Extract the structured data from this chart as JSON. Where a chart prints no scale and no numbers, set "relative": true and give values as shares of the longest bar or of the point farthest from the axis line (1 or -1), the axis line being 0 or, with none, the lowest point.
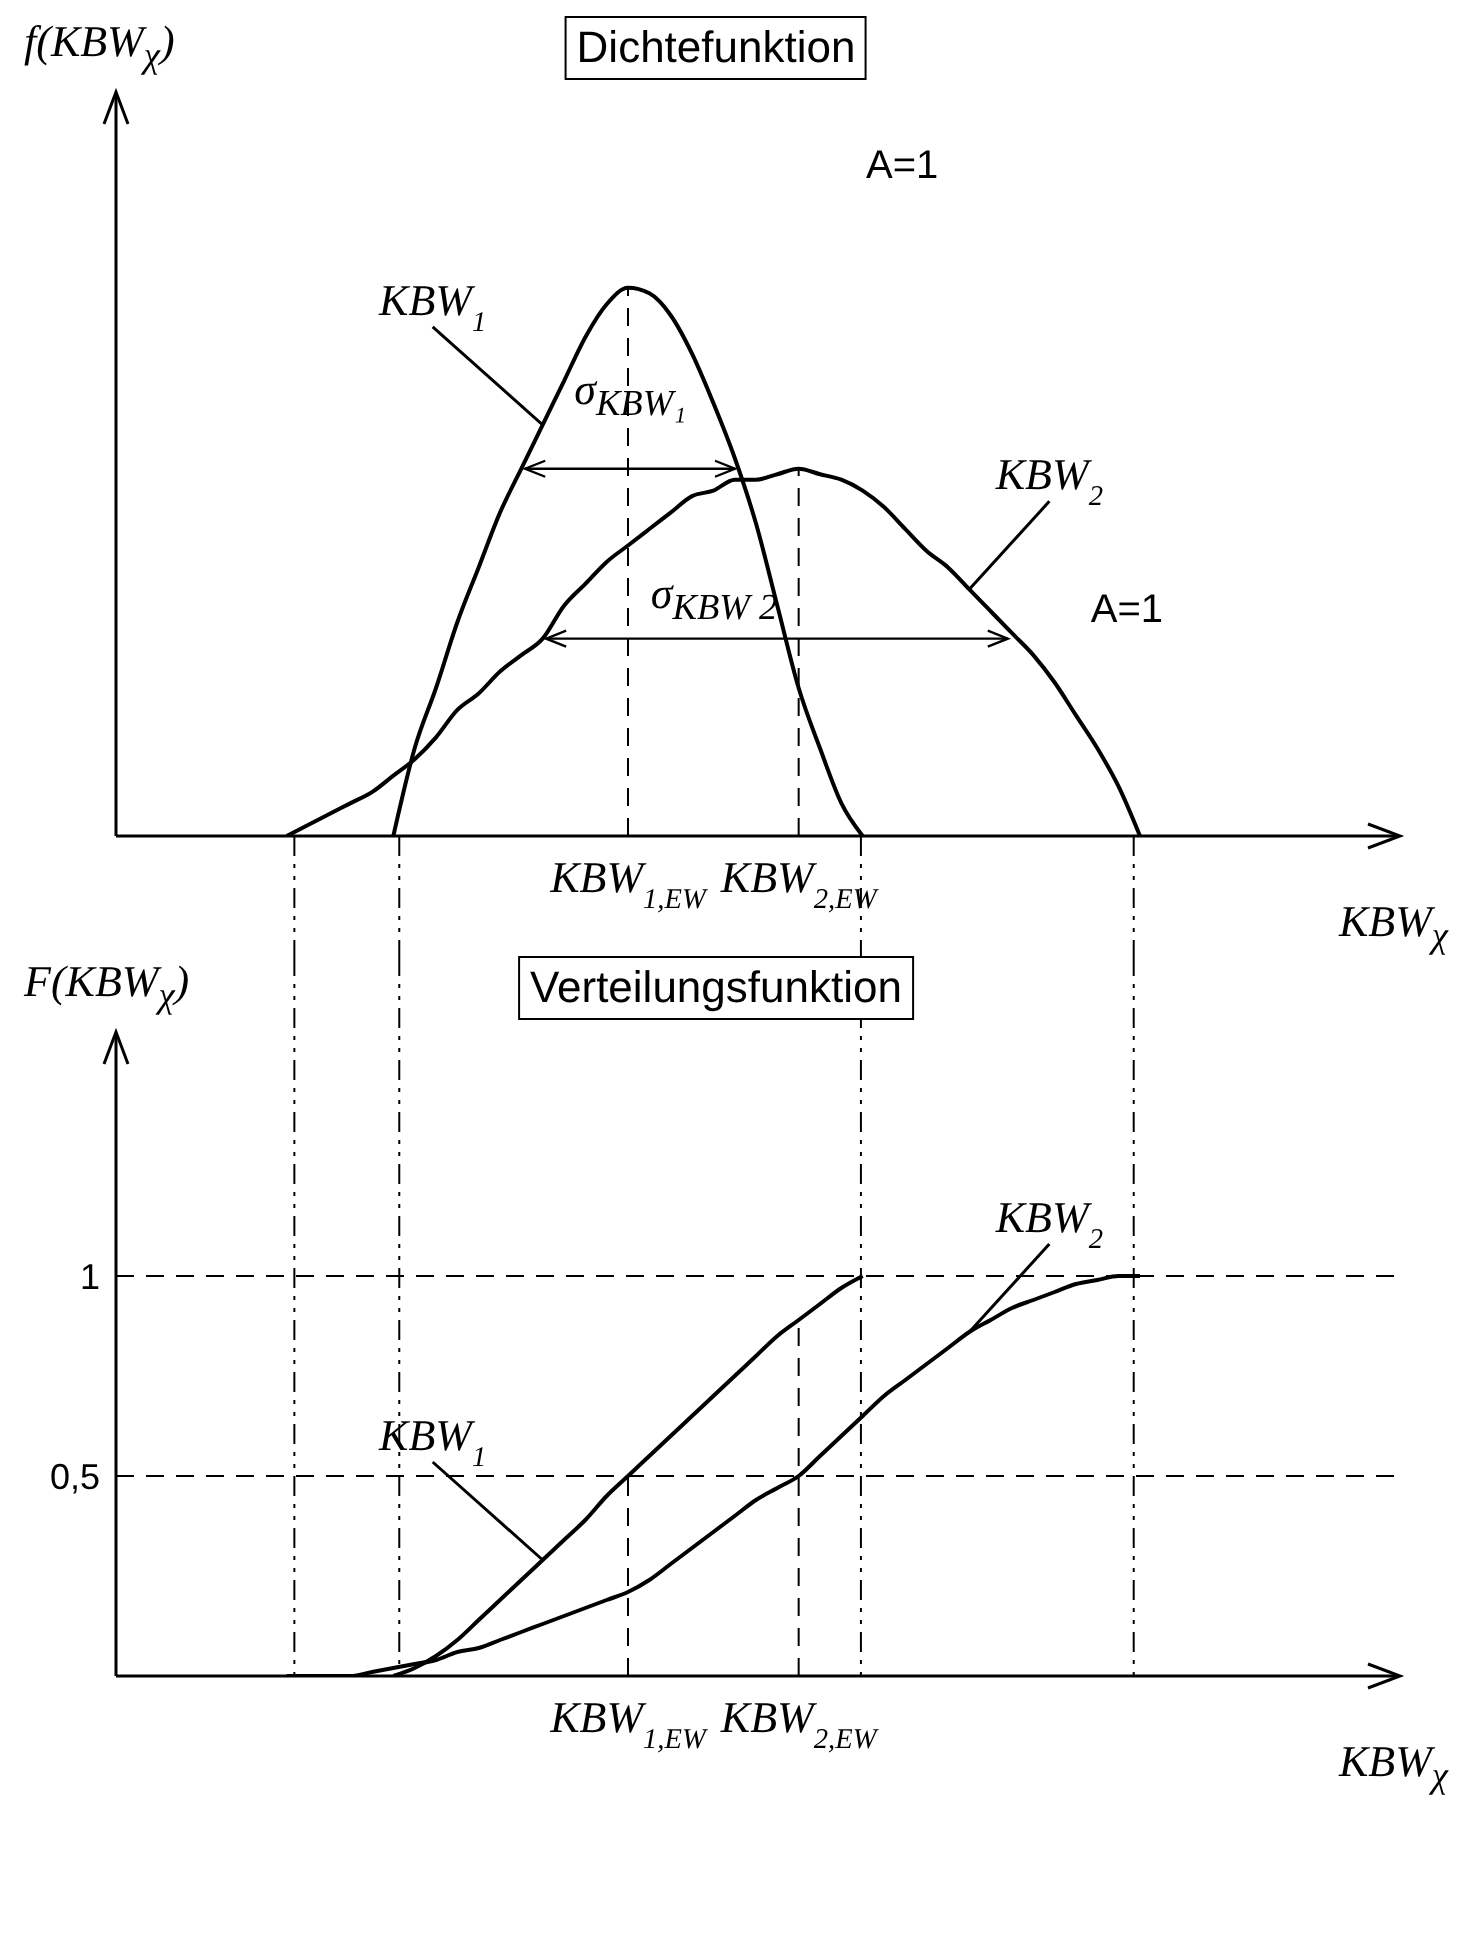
{
  "chart_data": [
    {
      "type": "line",
      "title": "Dichtefunktion",
      "ylabel": "f(KBW$_{χ}$)",
      "xlabel": "KBW$_{χ}$",
      "relative": true,
      "categories": [
        null,
        null,
        null,
        null,
        null,
        null,
        null,
        null,
        null,
        null,
        null,
        null,
        null,
        null,
        null,
        null,
        null,
        null,
        null,
        null,
        null,
        null,
        null,
        null,
        "KBW$_{1,EW}$",
        null,
        null,
        null,
        null,
        null,
        null,
        null,
        "KBW$_{2,EW}$",
        null,
        null,
        null,
        null,
        null,
        null,
        null,
        null,
        null,
        null,
        null,
        null,
        null,
        null,
        null,
        null,
        null,
        null,
        null,
        null,
        null,
        null,
        null,
        null,
        null,
        null,
        null,
        null
      ],
      "series": [
        {
          "name": "KBW$_{1}$",
          "color": "#000000",
          "values": [
            null,
            null,
            null,
            null,
            null,
            null,
            null,
            null,
            null,
            null,
            null,
            null,
            null,
            0,
            0.16,
            0.27,
            0.39,
            0.49,
            0.59,
            0.67,
            0.75,
            0.83,
            0.91,
            0.97,
            1,
            0.99,
            0.95,
            0.88,
            0.79,
            0.69,
            0.57,
            0.42,
            0.27,
            0.16,
            0.06,
            0,
            null,
            null,
            null,
            null,
            null,
            null,
            null,
            null,
            null,
            null,
            null,
            null,
            null,
            null,
            null,
            null,
            null,
            null,
            null,
            null,
            null,
            null,
            null,
            null,
            null
          ]
        },
        {
          "name": "KBW$_{2}$",
          "color": "#000000",
          "values": [
            null,
            null,
            null,
            null,
            null,
            null,
            null,
            null,
            0,
            0.02,
            0.04,
            0.06,
            0.08,
            0.11,
            0.14,
            0.18,
            0.23,
            0.26,
            0.3,
            0.33,
            0.36,
            0.42,
            0.46,
            0.5,
            0.53,
            0.56,
            0.59,
            0.62,
            0.63,
            0.65,
            0.65,
            0.66,
            0.67,
            0.66,
            0.65,
            0.63,
            0.6,
            0.56,
            0.52,
            0.49,
            0.45,
            0.41,
            0.37,
            0.33,
            0.28,
            0.22,
            0.16,
            0.09,
            0,
            null,
            null,
            null,
            null,
            null,
            null,
            null,
            null,
            null,
            null,
            null,
            null
          ]
        }
      ],
      "ref_lines": [
        {
          "axis": "x",
          "value": "KBW$_{1,EW}$",
          "line_style": "dashed"
        },
        {
          "axis": "x",
          "value": "KBW$_{2,EW}$",
          "line_style": "dashed"
        }
      ],
      "annotations": [
        "A=1",
        "σ$_{KBW₁}$",
        "σ$_{KBW 2}$",
        "A=1"
      ]
    },
    {
      "type": "line",
      "title": "Verteilungsfunktion",
      "ylabel": "F(KBW$_{χ}$)",
      "xlabel": "KBW$_{χ}$",
      "ylim": [
        0,
        1.6
      ],
      "yticks": [
        {
          "value": 0.5,
          "label": "0,5"
        },
        1
      ],
      "categories": [
        null,
        null,
        null,
        null,
        null,
        null,
        null,
        null,
        null,
        null,
        null,
        null,
        null,
        null,
        null,
        null,
        null,
        null,
        null,
        null,
        null,
        null,
        null,
        null,
        "KBW$_{1,EW}$",
        null,
        null,
        null,
        null,
        null,
        null,
        null,
        "KBW$_{2,EW}$",
        null,
        null,
        null,
        null,
        null,
        null,
        null,
        null,
        null,
        null,
        null,
        null,
        null,
        null,
        null,
        null,
        null,
        null,
        null,
        null,
        null,
        null,
        null,
        null,
        null,
        null,
        null,
        null
      ],
      "series": [
        {
          "name": "KBW$_{1}$",
          "color": "#000000",
          "values": [
            null,
            null,
            null,
            null,
            null,
            null,
            null,
            null,
            null,
            null,
            null,
            null,
            null,
            0,
            0.02,
            0.05,
            0.09,
            0.14,
            0.19,
            0.24,
            0.29,
            0.34,
            0.39,
            0.45,
            0.5,
            0.55,
            0.6,
            0.65,
            0.7,
            0.75,
            0.8,
            0.85,
            0.89,
            0.93,
            0.97,
            1,
            null,
            null,
            null,
            null,
            null,
            null,
            null,
            null,
            null,
            null,
            null,
            null,
            null,
            null,
            null,
            null,
            null,
            null,
            null,
            null,
            null,
            null,
            null,
            null,
            null
          ]
        },
        {
          "name": "KBW$_{2}$",
          "color": "#000000",
          "values": [
            null,
            null,
            null,
            null,
            null,
            null,
            null,
            null,
            0,
            0,
            0,
            0,
            0.01,
            0.02,
            0.03,
            0.04,
            0.06,
            0.07,
            0.09,
            0.11,
            0.13,
            0.15,
            0.17,
            0.19,
            0.21,
            0.24,
            0.28,
            0.32,
            0.36,
            0.4,
            0.44,
            0.47,
            0.5,
            0.55,
            0.6,
            0.65,
            0.7,
            0.74,
            0.78,
            0.82,
            0.86,
            0.89,
            0.92,
            0.94,
            0.96,
            0.98,
            0.99,
            1,
            1,
            null,
            null,
            null,
            null,
            null,
            null,
            null,
            null,
            null,
            null,
            null,
            null
          ]
        }
      ],
      "ref_lines": [
        {
          "axis": "y",
          "value": 1,
          "line_style": "dashed"
        },
        {
          "axis": "y",
          "value": 0.5,
          "line_style": "dashed"
        },
        {
          "axis": "x",
          "value": "KBW$_{1,EW}$",
          "line_style": "dashed"
        },
        {
          "axis": "x",
          "value": "KBW$_{2,EW}$",
          "line_style": "dashed"
        }
      ]
    }
  ]
}
